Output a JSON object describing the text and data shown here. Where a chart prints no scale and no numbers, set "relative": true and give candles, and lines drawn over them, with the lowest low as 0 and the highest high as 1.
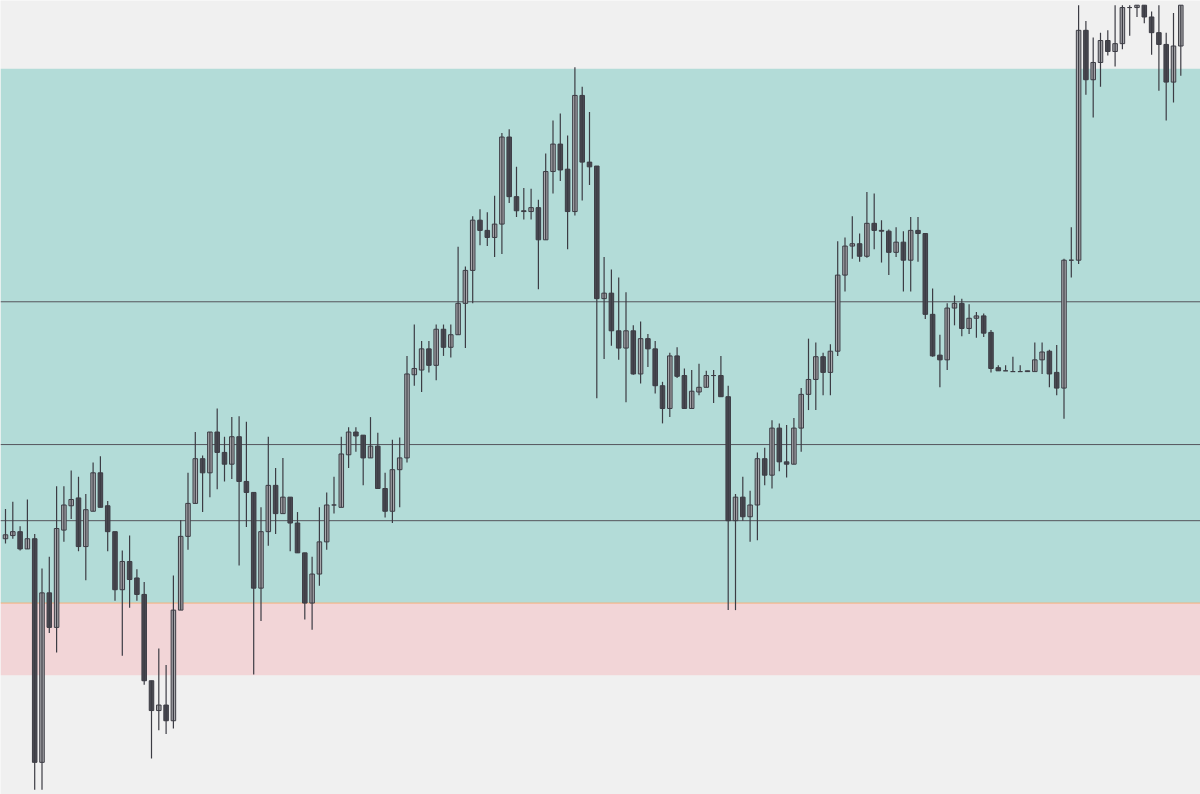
{
  "chart_data": {
    "type": "candlestick",
    "relative": true,
    "categories": [
      null,
      null,
      null,
      null,
      null,
      null,
      null,
      null,
      null,
      null,
      null,
      null,
      null,
      null,
      null,
      null,
      null,
      null,
      null,
      null,
      null,
      null,
      null,
      null,
      null,
      null,
      null,
      null,
      null,
      null,
      null,
      null,
      null,
      null,
      null,
      null,
      null,
      null,
      null,
      null,
      null,
      null,
      null,
      null,
      null,
      null,
      null,
      null,
      null,
      null,
      null,
      null,
      null,
      null,
      null,
      null,
      null,
      null,
      null,
      null,
      null,
      null,
      null,
      null,
      null,
      null,
      null,
      null,
      null,
      null,
      null,
      null,
      null,
      null,
      null,
      null,
      null,
      null,
      null,
      null,
      null,
      null,
      null,
      null,
      null,
      null,
      null,
      null,
      null,
      null,
      null,
      null,
      null,
      null,
      null,
      null,
      null,
      null,
      null,
      null,
      null,
      null,
      null,
      null,
      null,
      null,
      null,
      null,
      null,
      null,
      null,
      null,
      null,
      null,
      null,
      null,
      null,
      null,
      null,
      null,
      null,
      null,
      null,
      null,
      null,
      null,
      null,
      null,
      null,
      null,
      null,
      null,
      null,
      null,
      null,
      null,
      null,
      null,
      null,
      null,
      null,
      null,
      null,
      null,
      null,
      null,
      null,
      null,
      null,
      null,
      null,
      null,
      null,
      null,
      null,
      null,
      null,
      null,
      null,
      null,
      null,
      null
    ],
    "ohlc": [
      [
        0.32,
        0.358,
        0.314,
        0.325
      ],
      [
        0.324,
        0.367,
        0.32,
        0.329
      ],
      [
        0.329,
        0.336,
        0.305,
        0.307
      ],
      [
        0.307,
        0.37,
        0.307,
        0.32
      ],
      [
        0.32,
        0.326,
        0.0,
        0.035
      ],
      [
        0.035,
        0.282,
        0.0,
        0.251
      ],
      [
        0.251,
        0.297,
        0.2,
        0.207
      ],
      [
        0.207,
        0.387,
        0.175,
        0.333
      ],
      [
        0.331,
        0.387,
        0.316,
        0.363
      ],
      [
        0.362,
        0.407,
        0.345,
        0.37
      ],
      [
        0.372,
        0.399,
        0.304,
        0.31
      ],
      [
        0.31,
        0.377,
        0.267,
        0.357
      ],
      [
        0.355,
        0.417,
        0.355,
        0.404
      ],
      [
        0.404,
        0.425,
        0.36,
        0.36
      ],
      [
        0.362,
        0.368,
        0.304,
        0.329
      ],
      [
        0.329,
        0.329,
        0.241,
        0.255
      ],
      [
        0.255,
        0.305,
        0.171,
        0.291
      ],
      [
        0.291,
        0.324,
        0.232,
        0.268
      ],
      [
        0.27,
        0.281,
        0.241,
        0.249
      ],
      [
        0.249,
        0.265,
        0.134,
        0.139
      ],
      [
        0.139,
        0.139,
        0.04,
        0.101
      ],
      [
        0.101,
        0.18,
        0.076,
        0.108
      ],
      [
        0.108,
        0.159,
        0.071,
        0.088
      ],
      [
        0.088,
        0.273,
        0.078,
        0.229
      ],
      [
        0.229,
        0.344,
        0.229,
        0.323
      ],
      [
        0.323,
        0.404,
        0.306,
        0.365
      ],
      [
        0.365,
        0.456,
        0.365,
        0.422
      ],
      [
        0.422,
        0.426,
        0.354,
        0.404
      ],
      [
        0.404,
        0.456,
        0.373,
        0.456
      ],
      [
        0.456,
        0.486,
        0.383,
        0.43
      ],
      [
        0.43,
        0.45,
        0.393,
        0.415
      ],
      [
        0.415,
        0.475,
        0.396,
        0.45
      ],
      [
        0.45,
        0.476,
        0.286,
        0.393
      ],
      [
        0.393,
        0.469,
        0.335,
        0.379
      ],
      [
        0.379,
        0.379,
        0.147,
        0.257
      ],
      [
        0.257,
        0.36,
        0.215,
        0.329
      ],
      [
        0.329,
        0.45,
        0.311,
        0.388
      ],
      [
        0.388,
        0.41,
        0.326,
        0.352
      ],
      [
        0.352,
        0.423,
        0.352,
        0.373
      ],
      [
        0.373,
        0.373,
        0.304,
        0.34
      ],
      [
        0.34,
        0.354,
        0.302,
        0.302
      ],
      [
        0.302,
        0.302,
        0.217,
        0.238
      ],
      [
        0.238,
        0.297,
        0.204,
        0.275
      ],
      [
        0.275,
        0.36,
        0.26,
        0.316
      ],
      [
        0.316,
        0.379,
        0.306,
        0.363
      ],
      [
        0.363,
        0.399,
        0.352,
        0.363
      ],
      [
        0.36,
        0.45,
        0.36,
        0.428
      ],
      [
        0.427,
        0.462,
        0.41,
        0.456
      ],
      [
        0.456,
        0.462,
        0.431,
        0.451
      ],
      [
        0.452,
        0.452,
        0.388,
        0.423
      ],
      [
        0.423,
        0.475,
        0.423,
        0.438
      ],
      [
        0.438,
        0.455,
        0.384,
        0.384
      ],
      [
        0.384,
        0.404,
        0.347,
        0.355
      ],
      [
        0.355,
        0.446,
        0.34,
        0.408
      ],
      [
        0.408,
        0.449,
        0.36,
        0.423
      ],
      [
        0.423,
        0.553,
        0.417,
        0.53
      ],
      [
        0.529,
        0.593,
        0.515,
        0.537
      ],
      [
        0.535,
        0.572,
        0.507,
        0.562
      ],
      [
        0.562,
        0.572,
        0.532,
        0.541
      ],
      [
        0.541,
        0.593,
        0.522,
        0.587
      ],
      [
        0.587,
        0.593,
        0.553,
        0.564
      ],
      [
        0.564,
        0.593,
        0.551,
        0.58
      ],
      [
        0.58,
        0.692,
        0.58,
        0.62
      ],
      [
        0.62,
        0.667,
        0.563,
        0.662
      ],
      [
        0.662,
        0.731,
        0.62,
        0.726
      ],
      [
        0.726,
        0.74,
        0.694,
        0.713
      ],
      [
        0.713,
        0.736,
        0.693,
        0.704
      ],
      [
        0.704,
        0.757,
        0.679,
        0.721
      ],
      [
        0.721,
        0.837,
        0.683,
        0.832
      ],
      [
        0.832,
        0.842,
        0.748,
        0.756
      ],
      [
        0.756,
        0.794,
        0.73,
        0.738
      ],
      [
        0.738,
        0.767,
        0.727,
        0.737
      ],
      [
        0.737,
        0.766,
        0.727,
        0.742
      ],
      [
        0.742,
        0.752,
        0.638,
        0.701
      ],
      [
        0.701,
        0.811,
        0.701,
        0.788
      ],
      [
        0.788,
        0.853,
        0.76,
        0.823
      ],
      [
        0.823,
        0.862,
        0.776,
        0.79
      ],
      [
        0.791,
        0.834,
        0.689,
        0.737
      ],
      [
        0.737,
        0.921,
        0.732,
        0.885
      ],
      [
        0.885,
        0.896,
        0.751,
        0.8
      ],
      [
        0.8,
        0.864,
        0.771,
        0.794
      ],
      [
        0.795,
        0.795,
        0.499,
        0.626
      ],
      [
        0.626,
        0.679,
        0.549,
        0.633
      ],
      [
        0.633,
        0.663,
        0.566,
        0.585
      ],
      [
        0.585,
        0.653,
        0.548,
        0.563
      ],
      [
        0.563,
        0.634,
        0.494,
        0.585
      ],
      [
        0.585,
        0.592,
        0.529,
        0.53
      ],
      [
        0.53,
        0.597,
        0.518,
        0.575
      ],
      [
        0.575,
        0.581,
        0.539,
        0.562
      ],
      [
        0.562,
        0.572,
        0.505,
        0.515
      ],
      [
        0.515,
        0.52,
        0.467,
        0.486
      ],
      [
        0.486,
        0.557,
        0.475,
        0.553
      ],
      [
        0.553,
        0.564,
        0.525,
        0.527
      ],
      [
        0.528,
        0.537,
        0.486,
        0.486
      ],
      [
        0.486,
        0.535,
        0.486,
        0.508
      ],
      [
        0.507,
        0.543,
        0.503,
        0.513
      ],
      [
        0.513,
        0.534,
        0.513,
        0.528
      ],
      [
        0.528,
        0.535,
        0.493,
        0.528
      ],
      [
        0.528,
        0.553,
        0.501,
        0.501
      ],
      [
        0.501,
        0.515,
        0.229,
        0.343
      ],
      [
        0.343,
        0.377,
        0.229,
        0.373
      ],
      [
        0.373,
        0.399,
        0.343,
        0.348
      ],
      [
        0.348,
        0.381,
        0.316,
        0.363
      ],
      [
        0.363,
        0.43,
        0.318,
        0.422
      ],
      [
        0.422,
        0.436,
        0.388,
        0.401
      ],
      [
        0.401,
        0.471,
        0.384,
        0.461
      ],
      [
        0.461,
        0.467,
        0.406,
        0.418
      ],
      [
        0.418,
        0.465,
        0.398,
        0.415
      ],
      [
        0.415,
        0.474,
        0.415,
        0.461
      ],
      [
        0.461,
        0.512,
        0.431,
        0.504
      ],
      [
        0.504,
        0.575,
        0.484,
        0.523
      ],
      [
        0.523,
        0.57,
        0.484,
        0.552
      ],
      [
        0.552,
        0.557,
        0.503,
        0.532
      ],
      [
        0.532,
        0.568,
        0.503,
        0.559
      ],
      [
        0.559,
        0.699,
        0.553,
        0.656
      ],
      [
        0.656,
        0.704,
        0.635,
        0.693
      ],
      [
        0.693,
        0.731,
        0.677,
        0.696
      ],
      [
        0.696,
        0.709,
        0.673,
        0.68
      ],
      [
        0.68,
        0.762,
        0.678,
        0.722
      ],
      [
        0.722,
        0.76,
        0.689,
        0.713
      ],
      [
        0.713,
        0.726,
        0.672,
        0.712
      ],
      [
        0.712,
        0.714,
        0.656,
        0.685
      ],
      [
        0.685,
        0.717,
        0.679,
        0.698
      ],
      [
        0.698,
        0.712,
        0.635,
        0.675
      ],
      [
        0.675,
        0.73,
        0.635,
        0.713
      ],
      [
        0.713,
        0.73,
        0.673,
        0.709
      ],
      [
        0.709,
        0.709,
        0.6,
        0.606
      ],
      [
        0.606,
        0.639,
        0.552,
        0.553
      ],
      [
        0.554,
        0.58,
        0.513,
        0.548
      ],
      [
        0.548,
        0.62,
        0.535,
        0.614
      ],
      [
        0.614,
        0.63,
        0.592,
        0.62
      ],
      [
        0.62,
        0.626,
        0.578,
        0.588
      ],
      [
        0.588,
        0.619,
        0.581,
        0.601
      ],
      [
        0.601,
        0.609,
        0.576,
        0.604
      ],
      [
        0.604,
        0.607,
        0.577,
        0.582
      ],
      [
        0.583,
        0.586,
        0.532,
        0.537
      ],
      [
        0.538,
        0.541,
        0.534,
        0.534
      ],
      [
        0.534,
        0.541,
        0.534,
        0.534
      ],
      [
        0.533,
        0.552,
        0.533,
        0.533
      ],
      [
        0.533,
        0.541,
        0.533,
        0.533
      ],
      [
        0.534,
        0.534,
        0.533,
        0.533
      ],
      [
        0.533,
        0.57,
        0.533,
        0.548
      ],
      [
        0.548,
        0.57,
        0.53,
        0.558
      ],
      [
        0.559,
        0.561,
        0.513,
        0.53
      ],
      [
        0.532,
        0.567,
        0.503,
        0.512
      ],
      [
        0.512,
        0.677,
        0.473,
        0.675
      ],
      [
        0.675,
        0.717,
        0.653,
        0.675
      ],
      [
        0.675,
        1.0,
        0.67,
        0.968
      ],
      [
        0.968,
        0.98,
        0.886,
        0.905
      ],
      [
        0.905,
        0.959,
        0.857,
        0.927
      ],
      [
        0.927,
        0.965,
        0.896,
        0.955
      ],
      [
        0.955,
        0.968,
        0.936,
        0.941
      ],
      [
        0.941,
        1.0,
        0.922,
        0.951
      ],
      [
        0.951,
        1.0,
        0.944,
        0.997
      ],
      [
        0.997,
        1.0,
        0.961,
        0.997
      ],
      [
        0.997,
        1.0,
        0.985,
        1.0
      ],
      [
        1.0,
        1.0,
        0.977,
        0.985
      ],
      [
        0.985,
        0.992,
        0.937,
        0.965
      ],
      [
        0.965,
        1.0,
        0.891,
        0.95
      ],
      [
        0.95,
        0.965,
        0.853,
        0.902
      ],
      [
        0.902,
        0.99,
        0.876,
        0.948
      ],
      [
        0.948,
        1.0,
        0.91,
        1.0
      ]
    ],
    "colors": [
      "#a8a8ac",
      "#a8a8ac",
      "#4a4a52",
      "#a8a8ac",
      "#4a4a52",
      "#a8a8ac",
      "#4a4a52",
      "#a8a8ac",
      "#a8a8ac",
      "#a8a8ac",
      "#4a4a52",
      "#a8a8ac",
      "#a8a8ac",
      "#4a4a52",
      "#4a4a52",
      "#4a4a52",
      "#a8a8ac",
      "#4a4a52",
      "#4a4a52",
      "#4a4a52",
      "#4a4a52",
      "#a8a8ac",
      "#4a4a52",
      "#a8a8ac",
      "#a8a8ac",
      "#a8a8ac",
      "#a8a8ac",
      "#4a4a52",
      "#a8a8ac",
      "#4a4a52",
      "#4a4a52",
      "#a8a8ac",
      "#4a4a52",
      "#4a4a52",
      "#4a4a52",
      "#a8a8ac",
      "#a8a8ac",
      "#4a4a52",
      "#a8a8ac",
      "#4a4a52",
      "#4a4a52",
      "#4a4a52",
      "#a8a8ac",
      "#a8a8ac",
      "#a8a8ac",
      "#4a4a52",
      "#a8a8ac",
      "#a8a8ac",
      "#4a4a52",
      "#4a4a52",
      "#a8a8ac",
      "#4a4a52",
      "#4a4a52",
      "#a8a8ac",
      "#a8a8ac",
      "#a8a8ac",
      "#a8a8ac",
      "#a8a8ac",
      "#4a4a52",
      "#a8a8ac",
      "#4a4a52",
      "#a8a8ac",
      "#a8a8ac",
      "#a8a8ac",
      "#a8a8ac",
      "#4a4a52",
      "#4a4a52",
      "#a8a8ac",
      "#a8a8ac",
      "#4a4a52",
      "#4a4a52",
      "#4a4a52",
      "#a8a8ac",
      "#4a4a52",
      "#a8a8ac",
      "#a8a8ac",
      "#4a4a52",
      "#4a4a52",
      "#a8a8ac",
      "#4a4a52",
      "#4a4a52",
      "#4a4a52",
      "#a8a8ac",
      "#4a4a52",
      "#4a4a52",
      "#a8a8ac",
      "#4a4a52",
      "#a8a8ac",
      "#4a4a52",
      "#4a4a52",
      "#4a4a52",
      "#a8a8ac",
      "#4a4a52",
      "#4a4a52",
      "#a8a8ac",
      "#a8a8ac",
      "#a8a8ac",
      "#4a4a52",
      "#4a4a52",
      "#4a4a52",
      "#a8a8ac",
      "#4a4a52",
      "#a8a8ac",
      "#a8a8ac",
      "#4a4a52",
      "#a8a8ac",
      "#4a4a52",
      "#4a4a52",
      "#a8a8ac",
      "#a8a8ac",
      "#a8a8ac",
      "#a8a8ac",
      "#4a4a52",
      "#a8a8ac",
      "#a8a8ac",
      "#a8a8ac",
      "#a8a8ac",
      "#4a4a52",
      "#a8a8ac",
      "#4a4a52",
      "#4a4a52",
      "#4a4a52",
      "#a8a8ac",
      "#4a4a52",
      "#a8a8ac",
      "#4a4a52",
      "#4a4a52",
      "#4a4a52",
      "#4a4a52",
      "#a8a8ac",
      "#a8a8ac",
      "#4a4a52",
      "#a8a8ac",
      "#a8a8ac",
      "#4a4a52",
      "#4a4a52",
      "#4a4a52",
      "#4a4a52",
      "#4a4a52",
      "#4a4a52",
      "#4a4a52",
      "#a8a8ac",
      "#a8a8ac",
      "#4a4a52",
      "#4a4a52",
      "#a8a8ac",
      "#4a4a52",
      "#a8a8ac",
      "#4a4a52",
      "#a8a8ac",
      "#a8a8ac",
      "#4a4a52",
      "#a8a8ac",
      "#a8a8ac",
      "#4a4a52",
      "#a8a8ac",
      "#4a4a52",
      "#4a4a52",
      "#4a4a52",
      "#4a4a52",
      "#a8a8ac",
      "#a8a8ac"
    ],
    "bands": [
      {
        "axis": "y",
        "from": 0.238,
        "to": 0.919,
        "color": "#b3dcd8"
      },
      {
        "axis": "y",
        "from": 0.146,
        "to": 0.238,
        "color": "#f2d5d7"
      }
    ],
    "ref_lines": [
      {
        "axis": "y",
        "value": 0.238,
        "color": "#f5b07a"
      },
      {
        "axis": "y",
        "value": 0.44,
        "color": "#55555c"
      },
      {
        "axis": "y",
        "value": 0.622,
        "color": "#55555c"
      },
      {
        "axis": "y",
        "value": 0.343,
        "color": "#55555c"
      }
    ]
  }
}
